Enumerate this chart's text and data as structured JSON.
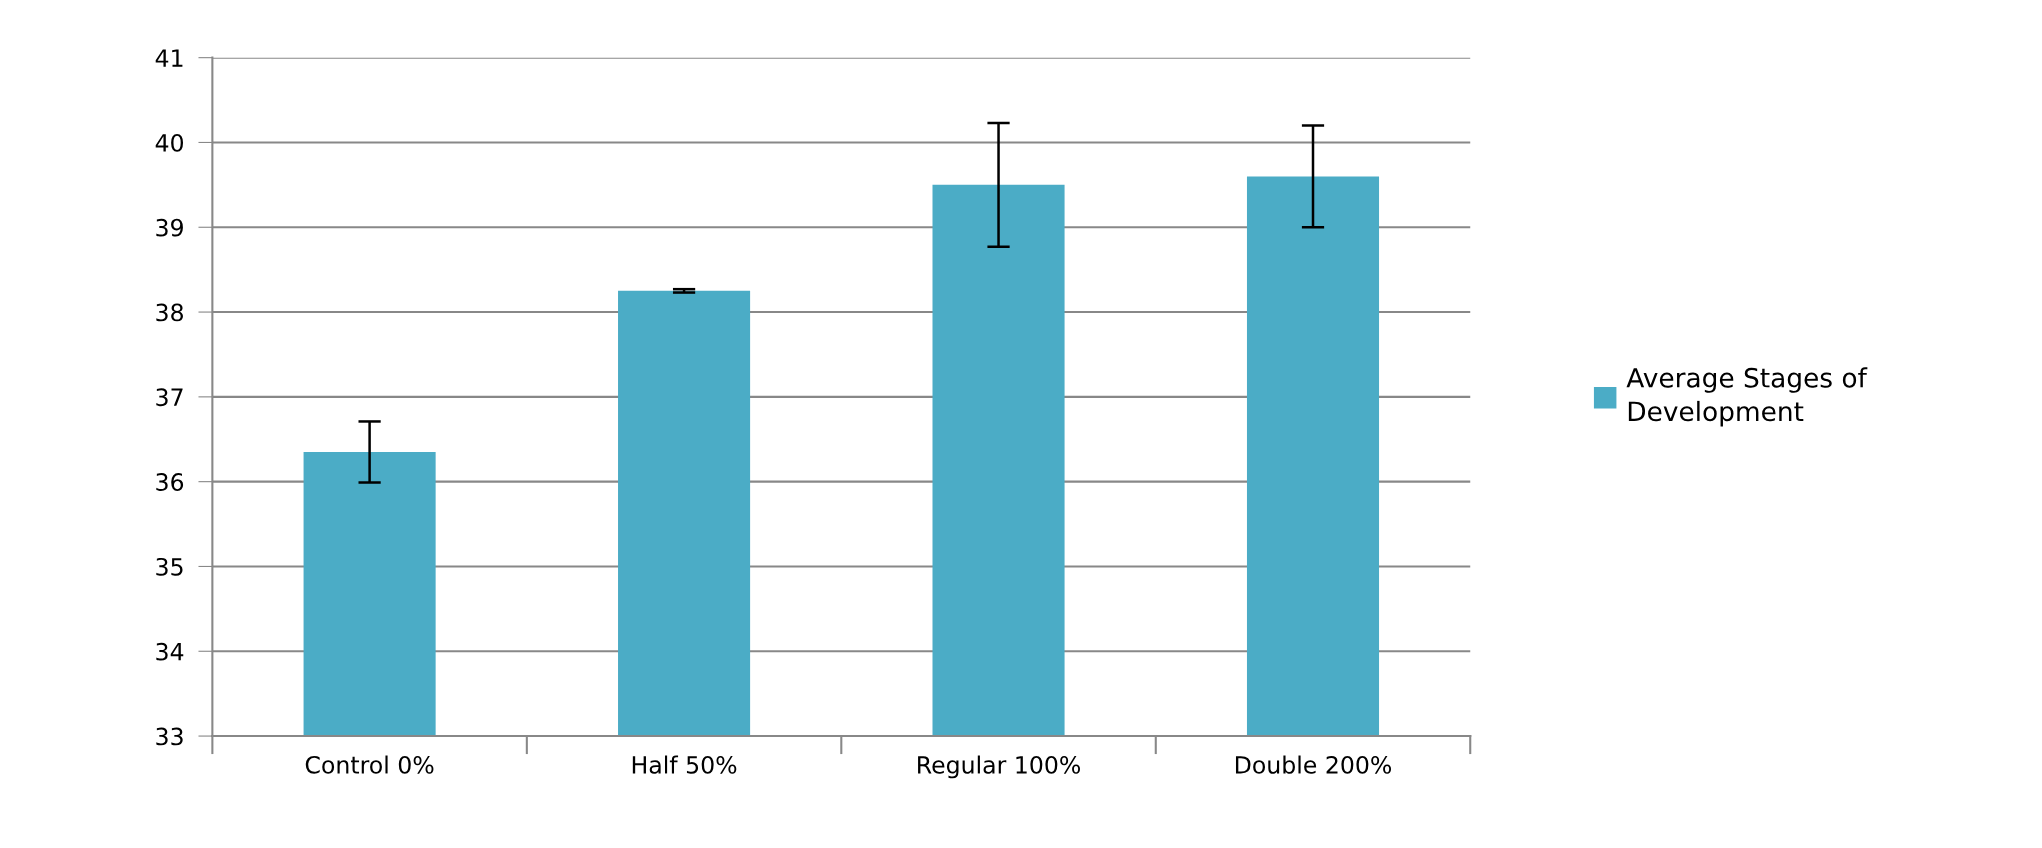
{
  "chart_data": {
    "type": "bar",
    "categories": [
      "Control 0%",
      "Half 50%",
      "Regular 100%",
      "Double 200%"
    ],
    "series": [
      {
        "name": "Average Stages of Development",
        "color": "#4bacc6",
        "values": [
          36.35,
          38.25,
          39.5,
          39.6
        ],
        "errors": [
          0.36,
          0.02,
          0.73,
          0.6
        ]
      }
    ],
    "ylim": [
      33,
      41
    ],
    "yticks": [
      33,
      34,
      35,
      36,
      37,
      38,
      39,
      40,
      41
    ],
    "grid": "y",
    "legend": "right"
  }
}
